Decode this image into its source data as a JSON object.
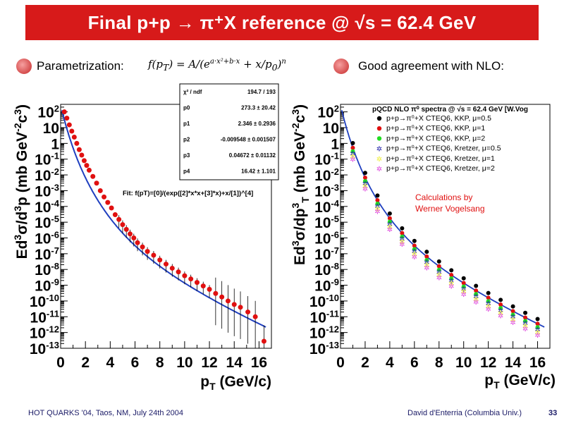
{
  "header": {
    "title": "Final p+p → π⁺X reference @ √s = 62.4 GeV"
  },
  "bullets": {
    "left_label": "Parametrization:",
    "formula": "f(pT) = A/(e^(a·x²+b·x) + x/p0)^n",
    "right_label": "Good agreement with NLO:"
  },
  "footer": {
    "left": "HOT QUARKS '04, Taos, NM, July 24th 2004",
    "right": "David d'Enterria (Columbia Univ.)",
    "page": "33"
  },
  "colors": {
    "title_bg": "#d71a1a",
    "fit_line": "#1f3fbf",
    "data": "#e01010"
  },
  "chart_data": [
    {
      "type": "scatter",
      "xlabel": "pT (GeV/c)",
      "ylabel": "Ed3σ/d3p (mb GeV-2c3)",
      "xlim": [
        0,
        17
      ],
      "ylim": [
        1e-13,
        300
      ],
      "log_y": true,
      "x_ticks": [
        "0",
        "2",
        "4",
        "6",
        "8",
        "10",
        "12",
        "14",
        "16"
      ],
      "y_ticks": [
        "10^2",
        "10",
        "1",
        "10^-1",
        "10^-2",
        "10^-3",
        "10^-4",
        "10^-5",
        "10^-6",
        "10^-7",
        "10^-8",
        "10^-9",
        "10^-10",
        "10^-11",
        "10^-12",
        "10^-13"
      ],
      "fit_label": "Fit: f(pT)=[0]/(exp([2]*x*x+[3]*x)+x/[1])^[4]",
      "stats": [
        {
          "name": "χ² / ndf",
          "value": "194.7 / 193"
        },
        {
          "name": "p0",
          "value": "273.3 ± 20.42"
        },
        {
          "name": "p1",
          "value": "2.346 ± 0.2936"
        },
        {
          "name": "p2",
          "value": "-0.009548 ± 0.001507"
        },
        {
          "name": "p3",
          "value": "0.04672 ± 0.01132"
        },
        {
          "name": "p4",
          "value": "16.42 ± 1.101"
        }
      ],
      "fit": {
        "A": 273.3,
        "p0": 2.346,
        "a": -0.009548,
        "b": 0.04672,
        "n": 16.42
      },
      "points": [
        [
          0.3,
          100
        ],
        [
          0.5,
          40
        ],
        [
          0.7,
          15
        ],
        [
          0.9,
          6
        ],
        [
          1.1,
          2.5
        ],
        [
          1.3,
          1
        ],
        [
          1.5,
          0.4
        ],
        [
          1.7,
          0.18
        ],
        [
          1.9,
          0.08
        ],
        [
          2.1,
          0.04
        ],
        [
          2.3,
          0.02
        ],
        [
          2.6,
          0.008
        ],
        [
          2.9,
          0.003
        ],
        [
          3.2,
          0.001
        ],
        [
          3.5,
          0.0004
        ],
        [
          3.8,
          0.00018
        ],
        [
          4.1,
          8e-05
        ],
        [
          4.4,
          3e-05
        ],
        [
          4.7,
          1.5e-05
        ],
        [
          5.0,
          7e-06
        ],
        [
          5.3,
          3.5e-06
        ],
        [
          5.6,
          1.8e-06
        ],
        [
          5.9,
          1e-06
        ],
        [
          6.2,
          5e-07
        ],
        [
          6.6,
          2.7e-07
        ],
        [
          7.0,
          1.4e-07
        ],
        [
          7.5,
          8e-08
        ],
        [
          8.0,
          4e-08
        ],
        [
          8.5,
          2.2e-08
        ],
        [
          9.0,
          1.2e-08
        ],
        [
          9.5,
          7e-09
        ],
        [
          10.0,
          4e-09
        ],
        [
          10.5,
          2.5e-09
        ],
        [
          11.0,
          1.5e-09
        ],
        [
          11.5,
          9e-10
        ],
        [
          12.0,
          5.5e-10
        ],
        [
          12.5,
          3e-10
        ],
        [
          13.0,
          1.8e-10
        ],
        [
          13.5,
          1e-10
        ],
        [
          14.0,
          6e-11
        ],
        [
          14.5,
          4e-11
        ],
        [
          15.1,
          2e-11
        ],
        [
          15.7,
          1e-11
        ],
        [
          16.4,
          2.8e-13
        ]
      ]
    },
    {
      "type": "scatter",
      "title": "pQCD NLO π⁰ spectra @ √s = 62.4 GeV [W.Vog",
      "xlabel": "pT (GeV/c)",
      "ylabel": "Ed3σ/dp3T (mb GeV-2c3)",
      "xlim": [
        0,
        17
      ],
      "ylim": [
        1e-13,
        300
      ],
      "log_y": true,
      "x_ticks": [
        "0",
        "2",
        "4",
        "6",
        "8",
        "10",
        "12",
        "14",
        "16"
      ],
      "y_ticks": [
        "10^2",
        "10",
        "1",
        "10^-1",
        "10^-2",
        "10^-3",
        "10^-4",
        "10^-5",
        "10^-6",
        "10^-7",
        "10^-8",
        "10^-9",
        "10^-10",
        "10^-11",
        "10^-12",
        "10^-13"
      ],
      "annotation": [
        "Calculations by",
        "Werner Vogelsang"
      ],
      "x": [
        1,
        2,
        3,
        4,
        5,
        6,
        7,
        8,
        9,
        10,
        11,
        12,
        13,
        14,
        15,
        16
      ],
      "series": [
        {
          "name": "p+p→π⁰+X CTEQ6, KKP, μ=0.5",
          "color": "#000000",
          "marker": "circle",
          "scale": 2.0
        },
        {
          "name": "p+p→π⁰+X CTEQ6, KKP, μ=1",
          "color": "#e01010",
          "marker": "circle",
          "scale": 1.0
        },
        {
          "name": "p+p→π⁰+X CTEQ6, KKP, μ=2",
          "color": "#22dd22",
          "marker": "circle",
          "scale": 0.6
        },
        {
          "name": "p+p→π⁰+X CTEQ6, Kretzer, μ=0.5",
          "color": "#2222aa",
          "marker": "star",
          "scale": 0.45
        },
        {
          "name": "p+p→π⁰+X CTEQ6, Kretzer, μ=1",
          "color": "#eeee33",
          "marker": "star",
          "scale": 0.3
        },
        {
          "name": "p+p→π⁰+X CTEQ6, Kretzer, μ=2",
          "color": "#dd44dd",
          "marker": "star",
          "scale": 0.2
        }
      ]
    }
  ]
}
